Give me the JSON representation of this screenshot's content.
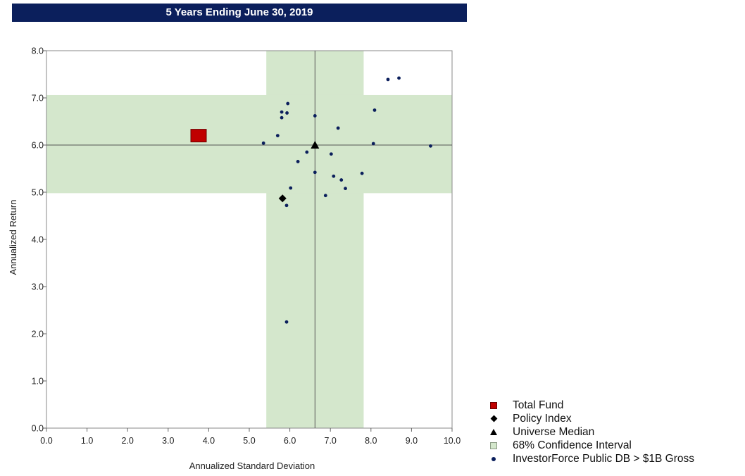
{
  "chart_data": {
    "type": "scatter",
    "title": "5 Years Ending June 30, 2019",
    "xlabel": "Annualized Standard Deviation",
    "ylabel": "Annualized Return",
    "xlim": [
      0,
      10
    ],
    "ylim": [
      0,
      8
    ],
    "x_ticks": [
      "0.0",
      "1.0",
      "2.0",
      "3.0",
      "4.0",
      "5.0",
      "6.0",
      "7.0",
      "8.0",
      "9.0",
      "10.0"
    ],
    "y_ticks": [
      "0.0",
      "1.0",
      "2.0",
      "3.0",
      "4.0",
      "5.0",
      "6.0",
      "7.0",
      "8.0"
    ],
    "grid": false,
    "legend_position": "bottom-right",
    "confidence_interval": {
      "x_range": [
        5.42,
        7.82
      ],
      "y_range": [
        4.98,
        7.06
      ]
    },
    "median_lines": {
      "x": 6.62,
      "y": 6.0
    },
    "series": [
      {
        "name": "Total Fund",
        "marker": "square",
        "color": "#c00000",
        "points": [
          {
            "x": 3.75,
            "y": 6.2
          }
        ]
      },
      {
        "name": "Policy Index",
        "marker": "diamond",
        "color": "#000000",
        "points": [
          {
            "x": 5.82,
            "y": 4.87
          }
        ]
      },
      {
        "name": "Universe Median",
        "marker": "triangle",
        "color": "#000000",
        "points": [
          {
            "x": 6.62,
            "y": 6.0
          }
        ]
      },
      {
        "name": "68% Confidence Interval",
        "marker": "box",
        "color": "#d4e7cc",
        "points": []
      },
      {
        "name": "InvestorForce Public DB > $1B Gross",
        "marker": "dot",
        "color": "#0b1f5c",
        "points": [
          {
            "x": 8.42,
            "y": 7.39
          },
          {
            "x": 8.69,
            "y": 7.42
          },
          {
            "x": 5.95,
            "y": 6.88
          },
          {
            "x": 5.8,
            "y": 6.7
          },
          {
            "x": 5.93,
            "y": 6.68
          },
          {
            "x": 5.8,
            "y": 6.58
          },
          {
            "x": 6.62,
            "y": 6.62
          },
          {
            "x": 8.09,
            "y": 6.74
          },
          {
            "x": 7.19,
            "y": 6.36
          },
          {
            "x": 5.7,
            "y": 6.2
          },
          {
            "x": 5.35,
            "y": 6.04
          },
          {
            "x": 8.06,
            "y": 6.03
          },
          {
            "x": 9.47,
            "y": 5.98
          },
          {
            "x": 6.42,
            "y": 5.85
          },
          {
            "x": 7.02,
            "y": 5.81
          },
          {
            "x": 6.2,
            "y": 5.65
          },
          {
            "x": 6.62,
            "y": 5.42
          },
          {
            "x": 7.78,
            "y": 5.4
          },
          {
            "x": 7.08,
            "y": 5.34
          },
          {
            "x": 7.27,
            "y": 5.26
          },
          {
            "x": 6.02,
            "y": 5.09
          },
          {
            "x": 7.37,
            "y": 5.08
          },
          {
            "x": 6.88,
            "y": 4.93
          },
          {
            "x": 5.92,
            "y": 4.72
          },
          {
            "x": 5.92,
            "y": 2.25
          }
        ]
      }
    ]
  },
  "legend": {
    "items": [
      {
        "label": "Total Fund",
        "marker": "square"
      },
      {
        "label": "Policy Index",
        "marker": "diamond"
      },
      {
        "label": "Universe Median",
        "marker": "triangle"
      },
      {
        "label": "68% Confidence Interval",
        "marker": "box"
      },
      {
        "label": "InvestorForce Public DB > $1B Gross",
        "marker": "dot"
      }
    ]
  }
}
